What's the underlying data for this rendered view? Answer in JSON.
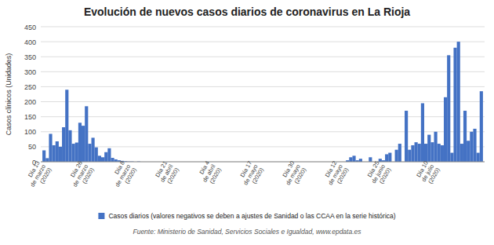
{
  "chart_data": {
    "type": "bar",
    "title": "Evolución de nuevos casos diarios de coronavirus en La Rioja",
    "ylabel": "Casos clínicos (Unidades)",
    "source": "Fuente: Ministerio de Sanidad, Servicios Sociales e Igualdad, www.epdata.es",
    "ylim": [
      0,
      450
    ],
    "yticks": [
      0,
      50,
      100,
      150,
      200,
      250,
      300,
      350,
      400,
      450
    ],
    "grid": true,
    "legend": "bottom",
    "categories": [
      "Día 13\nde marzo\n(2020)",
      null,
      null,
      null,
      null,
      null,
      null,
      null,
      null,
      null,
      null,
      null,
      null,
      "Día 26\nde marzo\n(2020)",
      null,
      null,
      null,
      null,
      null,
      null,
      null,
      null,
      null,
      null,
      null,
      null,
      "Día 8\nde marzo\n(2020)",
      null,
      null,
      null,
      null,
      null,
      null,
      null,
      null,
      null,
      null,
      null,
      null,
      "Día 21\nde abril\n(2020)",
      null,
      null,
      null,
      null,
      null,
      null,
      null,
      null,
      null,
      null,
      null,
      null,
      "Día 4\nde abril\n(2020)",
      null,
      null,
      null,
      null,
      null,
      null,
      null,
      null,
      null,
      null,
      null,
      null,
      "Día 17\nde mayo\n(2020)",
      null,
      null,
      null,
      null,
      null,
      null,
      null,
      null,
      null,
      null,
      null,
      null,
      "Día 30\nde mayo\n(2020)",
      null,
      null,
      null,
      null,
      null,
      null,
      null,
      null,
      null,
      null,
      null,
      null,
      "Día 12\nde mayo\n(2020)",
      null,
      null,
      null,
      null,
      null,
      null,
      null,
      null,
      null,
      null,
      null,
      null,
      "Día 25\nde junio\n(2020)",
      null,
      null,
      null,
      null,
      null,
      null,
      null,
      null,
      null,
      null,
      null,
      null,
      null,
      null,
      "Día 10\nde julio\n(2020)",
      null,
      null,
      null,
      null,
      null,
      null,
      null,
      null,
      null,
      null,
      null,
      null,
      null,
      null,
      null
    ],
    "series": [
      {
        "name": "Casos diarios (valores negativos se deben a ajustes de Sanidad o las CCAA en la serie histórica)",
        "color": "#4472c4",
        "values": [
          38,
          12,
          93,
          55,
          68,
          50,
          115,
          240,
          105,
          60,
          64,
          130,
          120,
          185,
          60,
          80,
          48,
          20,
          15,
          32,
          45,
          13,
          8,
          5,
          3,
          2,
          1,
          1,
          0,
          1,
          0,
          0,
          0,
          0,
          0,
          0,
          0,
          0,
          0,
          0,
          0,
          0,
          0,
          0,
          0,
          0,
          0,
          0,
          0,
          0,
          0,
          0,
          0,
          0,
          0,
          0,
          0,
          0,
          0,
          0,
          0,
          0,
          0,
          0,
          0,
          0,
          0,
          0,
          0,
          0,
          0,
          0,
          0,
          0,
          0,
          0,
          0,
          0,
          0,
          0,
          0,
          0,
          0,
          0,
          0,
          0,
          0,
          0,
          0,
          0,
          0,
          0,
          0,
          5,
          15,
          20,
          5,
          10,
          0,
          0,
          15,
          0,
          0,
          10,
          5,
          25,
          30,
          0,
          40,
          60,
          0,
          170,
          40,
          55,
          65,
          60,
          195,
          60,
          90,
          65,
          100,
          60,
          55,
          215,
          355,
          30,
          380,
          400,
          60,
          170,
          70,
          100,
          110,
          30,
          235
        ]
      }
    ]
  }
}
